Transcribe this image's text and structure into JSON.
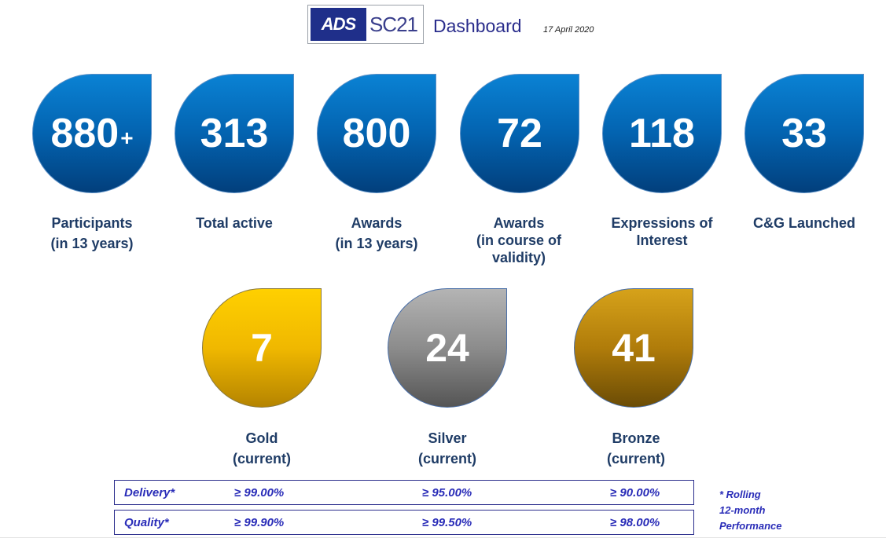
{
  "header": {
    "logo_ads": "ADS",
    "logo_sc": "SC21",
    "title": "Dashboard",
    "date": "17 April 2020"
  },
  "stats": [
    {
      "value": "880",
      "suffix": "+",
      "label_line1": "Participants",
      "label_line2": "(in 13 years)",
      "label_line3": ""
    },
    {
      "value": "313",
      "suffix": "",
      "label_line1": "Total active",
      "label_line2": "",
      "label_line3": ""
    },
    {
      "value": "800",
      "suffix": "",
      "label_line1": "Awards",
      "label_line2": "(in 13 years)",
      "label_line3": ""
    },
    {
      "value": "72",
      "suffix": "",
      "label_line1": "Awards",
      "label_line2": "(in course of",
      "label_line3": "validity)"
    },
    {
      "value": "118",
      "suffix": "",
      "label_line1": "Expressions of",
      "label_line2": "Interest",
      "label_line3": ""
    },
    {
      "value": "33",
      "suffix": "",
      "label_line1": "C&G Launched",
      "label_line2": "",
      "label_line3": ""
    }
  ],
  "medals": [
    {
      "value": "7",
      "label_line1": "Gold",
      "label_line2": "(current)",
      "color": "#f0b800"
    },
    {
      "value": "24",
      "label_line1": "Silver",
      "label_line2": "(current)",
      "color": "#8c8c8c"
    },
    {
      "value": "41",
      "label_line1": "Bronze",
      "label_line2": "(current)",
      "color": "#b07c0a"
    }
  ],
  "performance": [
    {
      "metric": "Delivery*",
      "gold": "≥ 99.00%",
      "silver": "≥ 95.00%",
      "bronze": "≥ 90.00%"
    },
    {
      "metric": "Quality*",
      "gold": "≥ 99.90%",
      "silver": "≥ 99.50%",
      "bronze": "≥ 98.00%"
    }
  ],
  "note": {
    "line1": "* Rolling",
    "line2": "12-month",
    "line3": "Performance"
  },
  "colors": {
    "blue_drop": "#0363b0",
    "label_text": "#1f3c66",
    "accent": "#2a2db8"
  }
}
